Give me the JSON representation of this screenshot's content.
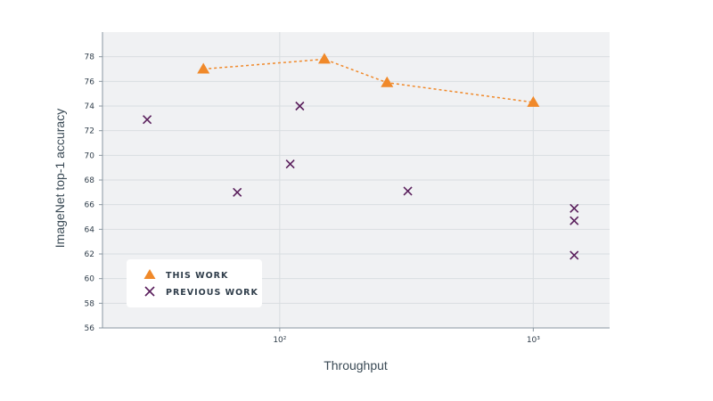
{
  "chart_data": {
    "type": "scatter",
    "xlabel": "Throughput",
    "ylabel": "ImageNet top-1 accuracy",
    "x_scale": "log",
    "xlim": [
      20,
      2000
    ],
    "ylim": [
      56,
      80
    ],
    "x_ticks": [
      {
        "value": 100,
        "label": "10²"
      },
      {
        "value": 1000,
        "label": "10³"
      }
    ],
    "y_ticks": [
      56,
      58,
      60,
      62,
      64,
      66,
      68,
      70,
      72,
      74,
      76,
      78
    ],
    "grid": true,
    "legend_position": "bottom-left",
    "series": [
      {
        "name": "THIS WORK",
        "marker": "triangle",
        "line": "dashed",
        "color": "#f0892a",
        "points": [
          {
            "x": 50,
            "y": 77.0
          },
          {
            "x": 150,
            "y": 77.8
          },
          {
            "x": 265,
            "y": 75.9
          },
          {
            "x": 1000,
            "y": 74.3
          }
        ]
      },
      {
        "name": "PREVIOUS WORK",
        "marker": "x",
        "line": "none",
        "color": "#5a1f5c",
        "points": [
          {
            "x": 30,
            "y": 72.9
          },
          {
            "x": 68,
            "y": 67.0
          },
          {
            "x": 110,
            "y": 69.3
          },
          {
            "x": 120,
            "y": 74.0
          },
          {
            "x": 320,
            "y": 67.1
          },
          {
            "x": 1450,
            "y": 65.7
          },
          {
            "x": 1450,
            "y": 64.7
          },
          {
            "x": 1450,
            "y": 61.9
          }
        ]
      }
    ]
  },
  "colors": {
    "plot_background": "#f0f1f3",
    "grid": "#d9dde1",
    "this_work": "#f0892a",
    "previous_work": "#5a1f5c"
  }
}
